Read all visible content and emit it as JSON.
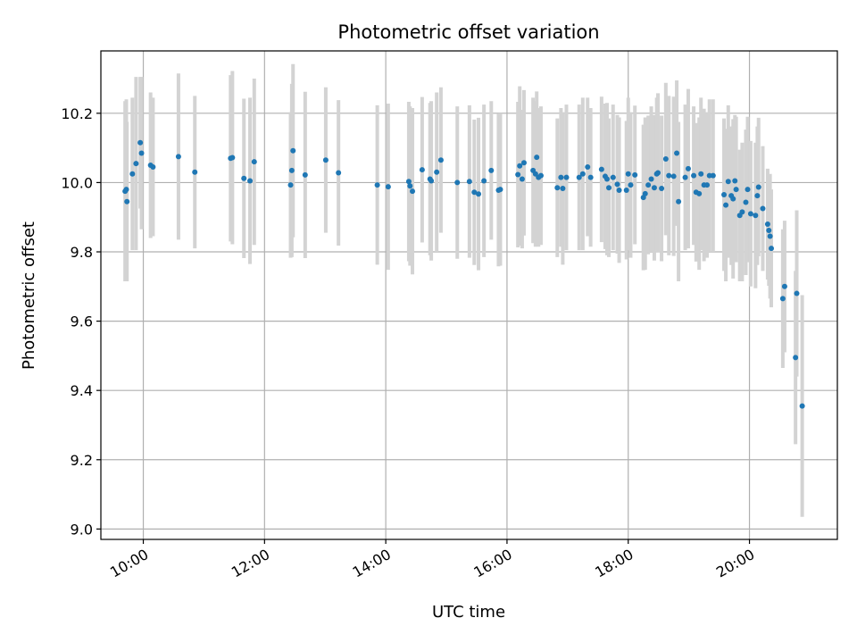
{
  "chart_data": {
    "type": "scatter",
    "title": "Photometric offset variation",
    "xlabel": "UTC time",
    "ylabel": "Photometric offset",
    "x_unit": "hours UTC",
    "xlim": [
      9.3,
      21.45
    ],
    "ylim": [
      8.97,
      10.38
    ],
    "grid": true,
    "x_ticks": [
      10,
      12,
      14,
      16,
      18,
      20
    ],
    "x_tick_labels": [
      "10:00",
      "12:00",
      "14:00",
      "16:00",
      "18:00",
      "20:00"
    ],
    "y_ticks": [
      9.0,
      9.2,
      9.4,
      9.6,
      9.8,
      10.0,
      10.2
    ],
    "y_tick_labels": [
      "9.0",
      "9.2",
      "9.4",
      "9.6",
      "9.8",
      "10.0",
      "10.2"
    ],
    "colors": {
      "points": "#1f77b4",
      "errorbars": "#d3d3d3",
      "grid": "#b0b0b0"
    },
    "series": [
      {
        "points": [
          [
            9.7,
            9.975,
            0.26
          ],
          [
            9.72,
            9.98,
            0.26
          ],
          [
            9.73,
            9.945,
            0.23
          ],
          [
            9.82,
            10.025,
            0.22
          ],
          [
            9.88,
            10.055,
            0.25
          ],
          [
            9.95,
            10.115,
            0.19
          ],
          [
            9.97,
            10.085,
            0.22
          ],
          [
            10.12,
            10.05,
            0.21
          ],
          [
            10.16,
            10.045,
            0.2
          ],
          [
            10.58,
            10.075,
            0.24
          ],
          [
            10.85,
            10.03,
            0.22
          ],
          [
            11.44,
            10.07,
            0.24
          ],
          [
            11.47,
            10.072,
            0.25
          ],
          [
            11.66,
            10.012,
            0.23
          ],
          [
            11.76,
            10.005,
            0.24
          ],
          [
            11.83,
            10.06,
            0.24
          ],
          [
            12.43,
            9.993,
            0.21
          ],
          [
            12.45,
            10.035,
            0.25
          ],
          [
            12.47,
            10.092,
            0.25
          ],
          [
            12.67,
            10.022,
            0.24
          ],
          [
            13.01,
            10.065,
            0.21
          ],
          [
            13.22,
            10.028,
            0.21
          ],
          [
            13.86,
            9.993,
            0.23
          ],
          [
            14.04,
            9.988,
            0.24
          ],
          [
            14.38,
            10.003,
            0.23
          ],
          [
            14.4,
            9.99,
            0.23
          ],
          [
            14.44,
            9.975,
            0.24
          ],
          [
            14.6,
            10.037,
            0.21
          ],
          [
            14.73,
            10.01,
            0.22
          ],
          [
            14.75,
            10.005,
            0.23
          ],
          [
            14.84,
            10.03,
            0.23
          ],
          [
            14.91,
            10.065,
            0.21
          ],
          [
            15.18,
            10.0,
            0.22
          ],
          [
            15.38,
            10.003,
            0.22
          ],
          [
            15.46,
            9.972,
            0.21
          ],
          [
            15.53,
            9.967,
            0.22
          ],
          [
            15.62,
            10.005,
            0.22
          ],
          [
            15.74,
            10.035,
            0.2
          ],
          [
            15.86,
            9.978,
            0.22
          ],
          [
            15.89,
            9.98,
            0.22
          ],
          [
            16.18,
            10.023,
            0.21
          ],
          [
            16.21,
            10.048,
            0.23
          ],
          [
            16.25,
            10.01,
            0.2
          ],
          [
            16.28,
            10.057,
            0.21
          ],
          [
            16.43,
            10.035,
            0.21
          ],
          [
            16.47,
            10.025,
            0.21
          ],
          [
            16.49,
            10.073,
            0.19
          ],
          [
            16.52,
            10.015,
            0.2
          ],
          [
            16.56,
            10.02,
            0.2
          ],
          [
            16.83,
            9.985,
            0.2
          ],
          [
            16.89,
            10.015,
            0.2
          ],
          [
            16.92,
            9.983,
            0.22
          ],
          [
            16.98,
            10.015,
            0.21
          ],
          [
            17.19,
            10.015,
            0.21
          ],
          [
            17.25,
            10.025,
            0.22
          ],
          [
            17.33,
            10.045,
            0.2
          ],
          [
            17.38,
            10.015,
            0.2
          ],
          [
            17.56,
            10.038,
            0.21
          ],
          [
            17.62,
            10.018,
            0.21
          ],
          [
            17.65,
            10.01,
            0.22
          ],
          [
            17.68,
            9.985,
            0.2
          ],
          [
            17.75,
            10.015,
            0.21
          ],
          [
            17.82,
            9.995,
            0.2
          ],
          [
            17.85,
            9.978,
            0.21
          ],
          [
            17.97,
            9.978,
            0.2
          ],
          [
            18.0,
            10.025,
            0.22
          ],
          [
            18.04,
            9.993,
            0.21
          ],
          [
            18.11,
            10.022,
            0.2
          ],
          [
            18.25,
            9.957,
            0.21
          ],
          [
            18.28,
            9.968,
            0.22
          ],
          [
            18.33,
            9.993,
            0.2
          ],
          [
            18.38,
            10.01,
            0.21
          ],
          [
            18.43,
            9.985,
            0.21
          ],
          [
            18.47,
            10.025,
            0.22
          ],
          [
            18.49,
            10.028,
            0.23
          ],
          [
            18.55,
            9.983,
            0.21
          ],
          [
            18.62,
            10.068,
            0.22
          ],
          [
            18.67,
            10.02,
            0.23
          ],
          [
            18.75,
            10.018,
            0.23
          ],
          [
            18.8,
            10.085,
            0.21
          ],
          [
            18.83,
            9.945,
            0.23
          ],
          [
            18.94,
            10.015,
            0.21
          ],
          [
            18.99,
            10.04,
            0.23
          ],
          [
            19.08,
            10.02,
            0.2
          ],
          [
            19.12,
            9.972,
            0.2
          ],
          [
            19.17,
            9.968,
            0.22
          ],
          [
            19.2,
            10.025,
            0.22
          ],
          [
            19.25,
            9.993,
            0.22
          ],
          [
            19.3,
            9.993,
            0.21
          ],
          [
            19.34,
            10.02,
            0.22
          ],
          [
            19.4,
            10.02,
            0.22
          ],
          [
            19.58,
            9.965,
            0.22
          ],
          [
            19.61,
            9.935,
            0.22
          ],
          [
            19.65,
            10.003,
            0.22
          ],
          [
            19.7,
            9.962,
            0.2
          ],
          [
            19.73,
            9.953,
            0.23
          ],
          [
            19.76,
            10.005,
            0.19
          ],
          [
            19.78,
            9.98,
            0.21
          ],
          [
            19.84,
            9.905,
            0.19
          ],
          [
            19.88,
            9.915,
            0.2
          ],
          [
            19.94,
            9.943,
            0.21
          ],
          [
            19.97,
            9.98,
            0.21
          ],
          [
            20.02,
            9.91,
            0.21
          ],
          [
            20.1,
            9.905,
            0.21
          ],
          [
            20.13,
            9.962,
            0.2
          ],
          [
            20.15,
            9.987,
            0.2
          ],
          [
            20.22,
            9.925,
            0.18
          ],
          [
            20.3,
            9.88,
            0.16
          ],
          [
            20.32,
            9.862,
            0.16
          ],
          [
            20.34,
            9.845,
            0.18
          ],
          [
            20.36,
            9.81,
            0.17
          ],
          [
            20.55,
            9.665,
            0.2
          ],
          [
            20.58,
            9.7,
            0.19
          ],
          [
            20.76,
            9.495,
            0.25
          ],
          [
            20.78,
            9.68,
            0.24
          ],
          [
            20.87,
            9.355,
            0.32
          ]
        ]
      }
    ]
  }
}
